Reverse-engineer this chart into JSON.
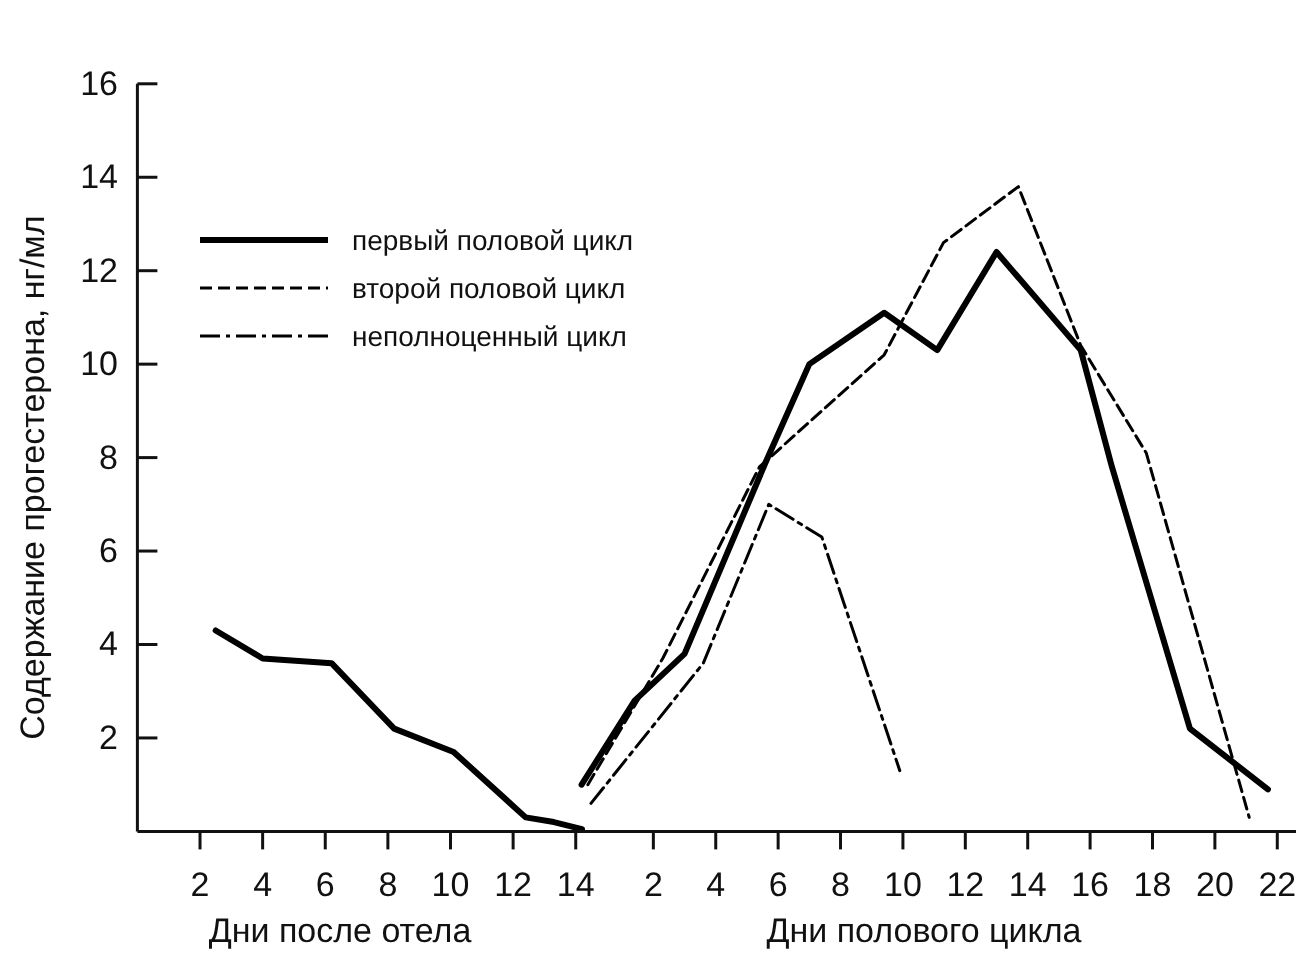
{
  "chart_data": [
    {
      "type": "line",
      "ylabel": "Содержание прогестерона, нг/мл",
      "xlabel": "Дни после отела",
      "xlim": [
        0,
        14.2
      ],
      "xticks": [
        2,
        4,
        6,
        8,
        10,
        12,
        14
      ],
      "ylim": [
        0,
        16
      ],
      "yticks": [
        2,
        4,
        6,
        8,
        10,
        12,
        14,
        16
      ],
      "series": [
        {
          "color": "#000000",
          "line_style": "solid",
          "x": [
            2.5,
            4,
            6.2,
            8.2,
            10.1,
            12.4,
            13.3,
            14.2
          ],
          "values": [
            4.3,
            3.7,
            3.6,
            2.2,
            1.7,
            0.3,
            0.2,
            0.05
          ]
        }
      ]
    },
    {
      "type": "line",
      "xlabel": "Дни полового цикла",
      "xlim": [
        -0.3,
        22.6
      ],
      "xticks": [
        2,
        4,
        6,
        8,
        10,
        12,
        14,
        16,
        18,
        20,
        22
      ],
      "ylim": [
        0,
        16
      ],
      "tick_labels": "x",
      "legend": "top left",
      "series": [
        {
          "name": "первый половой цикл",
          "color": "#000000",
          "line_style": "solid",
          "x": [
            -0.3,
            1.4,
            3,
            5.6,
            7,
            9.4,
            11.1,
            13,
            15.7,
            16.7,
            19.2,
            21.7
          ],
          "values": [
            1,
            2.8,
            3.8,
            7.9,
            10,
            11.1,
            10.3,
            12.4,
            10.3,
            7.8,
            2.2,
            0.9
          ]
        },
        {
          "name": "второй половой цикл",
          "color": "#000000",
          "line_style": "dashed",
          "x": [
            -0.1,
            2.3,
            5.4,
            9.4,
            11.3,
            13.7,
            15.7,
            17.8,
            21.1
          ],
          "values": [
            1,
            3.7,
            7.8,
            10.2,
            12.6,
            13.8,
            10.4,
            8.1,
            0.3
          ]
        },
        {
          "name": "неполноценный цикл",
          "color": "#000000",
          "line_style": "dashdot",
          "x": [
            0,
            3.6,
            5.7,
            7.4,
            9.9
          ],
          "values": [
            0.6,
            3.6,
            7,
            6.3,
            1.3
          ]
        }
      ]
    }
  ]
}
